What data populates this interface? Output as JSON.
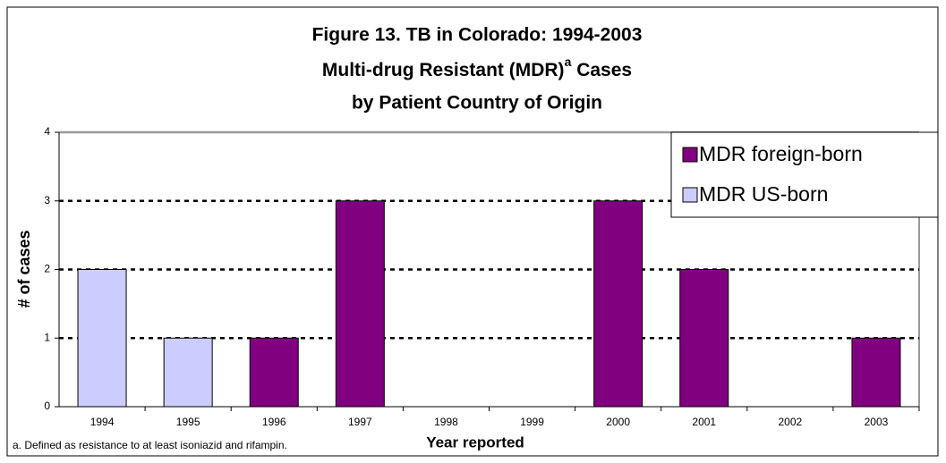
{
  "chart_data": {
    "type": "stacked_bar",
    "title": [
      "Figure 13.  TB in Colorado:  1994-2003",
      "Multi-drug Resistant (MDR)",
      "by Patient Country of Origin"
    ],
    "title_superscript": "a",
    "title_suffix": " Cases",
    "x_label": "Year reported",
    "y_label": "# of cases",
    "footnote": "a. Defined as resistance to at least isoniazid and rifampin.",
    "categories": [
      "1994",
      "1995",
      "1996",
      "1997",
      "1998",
      "1999",
      "2000",
      "2001",
      "2002",
      "2003"
    ],
    "series": [
      {
        "name": "MDR US-born",
        "color": "#ccccff",
        "values": [
          2,
          1,
          0,
          0,
          0,
          0,
          0,
          0,
          0,
          0
        ]
      },
      {
        "name": "MDR foreign-born",
        "color": "#800080",
        "values": [
          0,
          0,
          1,
          3,
          0,
          0,
          3,
          2,
          0,
          1
        ]
      }
    ],
    "ylim": [
      0,
      4
    ],
    "yticks": [
      0,
      1,
      2,
      3,
      4
    ],
    "grid": true,
    "legend": "top-right"
  }
}
